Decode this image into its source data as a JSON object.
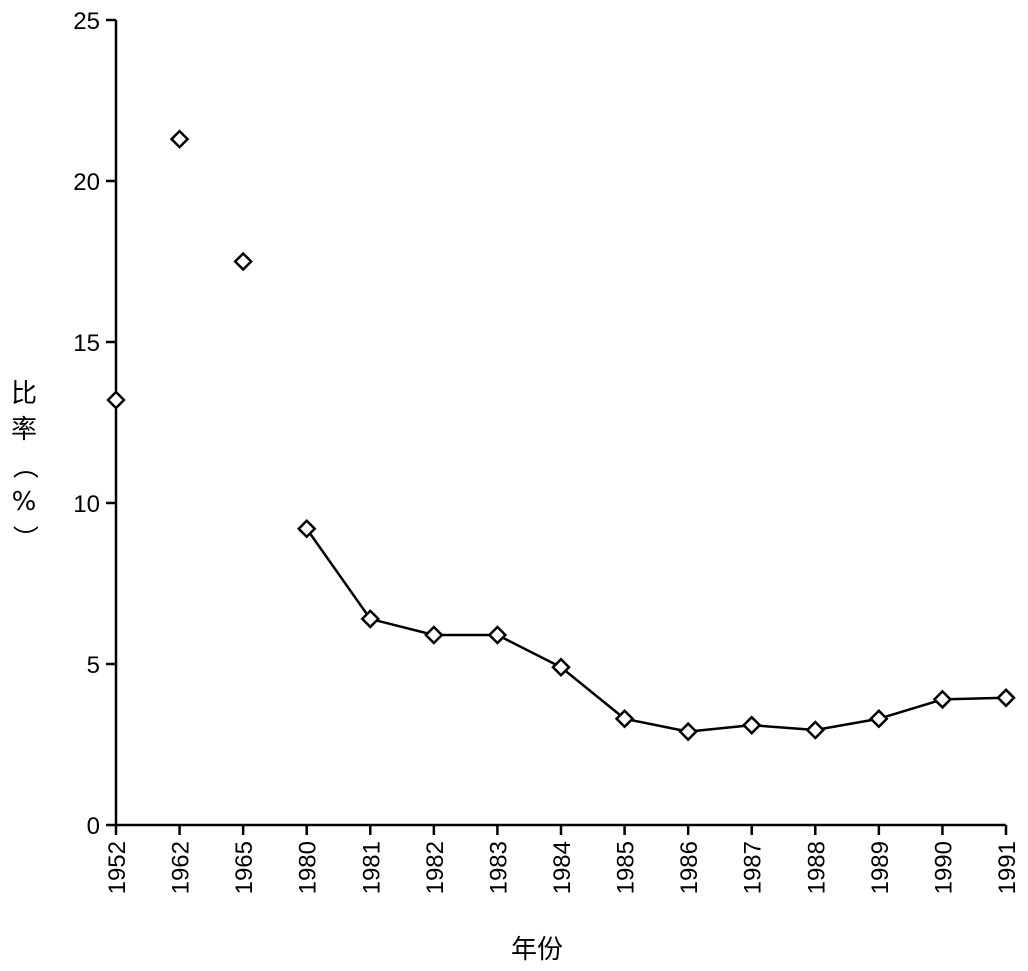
{
  "chart_data": {
    "type": "line",
    "title": "",
    "xlabel": "年份",
    "ylabel": "比率（%）",
    "ylim": [
      0,
      25
    ],
    "yticks": [
      "0",
      "5",
      "10",
      "15",
      "20",
      "25"
    ],
    "categories": [
      "1952",
      "1962",
      "1965",
      "1980",
      "1981",
      "1982",
      "1983",
      "1984",
      "1985",
      "1986",
      "1987",
      "1988",
      "1989",
      "1990",
      "1991"
    ],
    "values": [
      13.2,
      21.3,
      17.5,
      9.2,
      6.4,
      5.9,
      5.9,
      4.9,
      3.3,
      2.9,
      3.1,
      2.95,
      3.3,
      3.9,
      3.95
    ],
    "connected_from_index": 3,
    "marker": "open-diamond",
    "grid": false,
    "legend": "none",
    "colors": {
      "line": "#000000",
      "marker_fill": "#ffffff",
      "axis": "#000000"
    }
  }
}
